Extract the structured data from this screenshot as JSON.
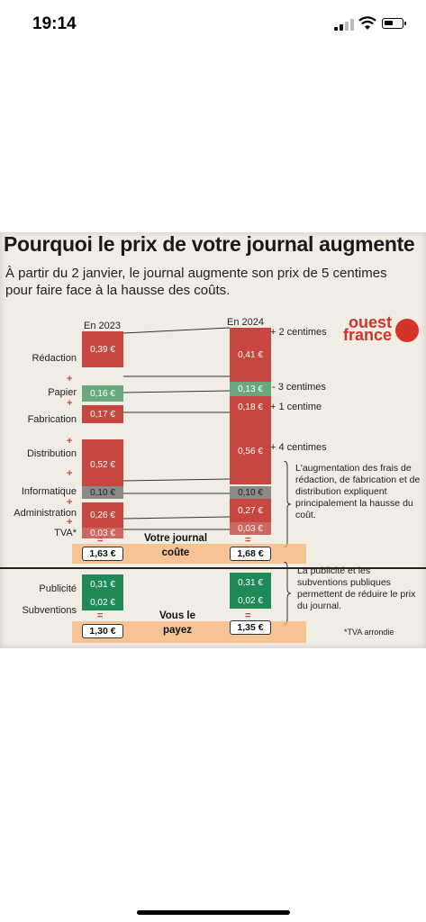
{
  "status_bar": {
    "time": "19:14"
  },
  "article": {
    "headline": "Pourquoi le prix de votre journal augmente",
    "subhead": "À partir du 2 janvier, le journal augmente son prix de 5 centimes pour faire face à la hausse des coûts.",
    "logo_line1": "ouest",
    "logo_line2": "france",
    "year_left": "En 2023",
    "year_right": "En 2024",
    "rows": [
      {
        "label": "Rédaction",
        "v2023": "0,39 €",
        "v2024": "0,41 €",
        "delta": "+ 2 centimes"
      },
      {
        "label": "Papier",
        "v2023": "0,16 €",
        "v2024": "0,13 €",
        "delta": "- 3 centimes"
      },
      {
        "label": "Fabrication",
        "v2023": "0,17 €",
        "v2024": "0,18 €",
        "delta": "+ 1 centime"
      },
      {
        "label": "Distribution",
        "v2023": "0,52 €",
        "v2024": "0,56 €",
        "delta": "+ 4 centimes"
      },
      {
        "label": "Informatique",
        "v2023": "0,10 €",
        "v2024": "0,10 €"
      },
      {
        "label": "Administration",
        "v2023": "0,26 €",
        "v2024": "0,27 €"
      },
      {
        "label": "TVA*",
        "v2023": "0,03 €",
        "v2024": "0,03 €"
      }
    ],
    "total_cost_2023": "1,63 €",
    "total_cost_2024": "1,68 €",
    "cost_caption_line1": "Votre journal",
    "cost_caption_line2": "coûte",
    "note_cost": "L'augmentation des frais de rédaction, de fabrication et de distribution expliquent principalement la hausse du coût.",
    "revenue_rows": [
      {
        "label": "Publicité",
        "v2023": "0,31 €",
        "v2024": "0,31 €"
      },
      {
        "label": "Subventions",
        "v2023": "0,02 €",
        "v2024": "0,02 €"
      }
    ],
    "paid_2023": "1,30 €",
    "paid_2024": "1,35 €",
    "paid_caption_line1": "Vous le",
    "paid_caption_line2": "payez",
    "note_revenue": "La publicité et les subventions publiques permettent de réduire le prix du journal.",
    "footnote": "*TVA arrondie",
    "plus_sign": "+",
    "equals_sign": "="
  }
}
